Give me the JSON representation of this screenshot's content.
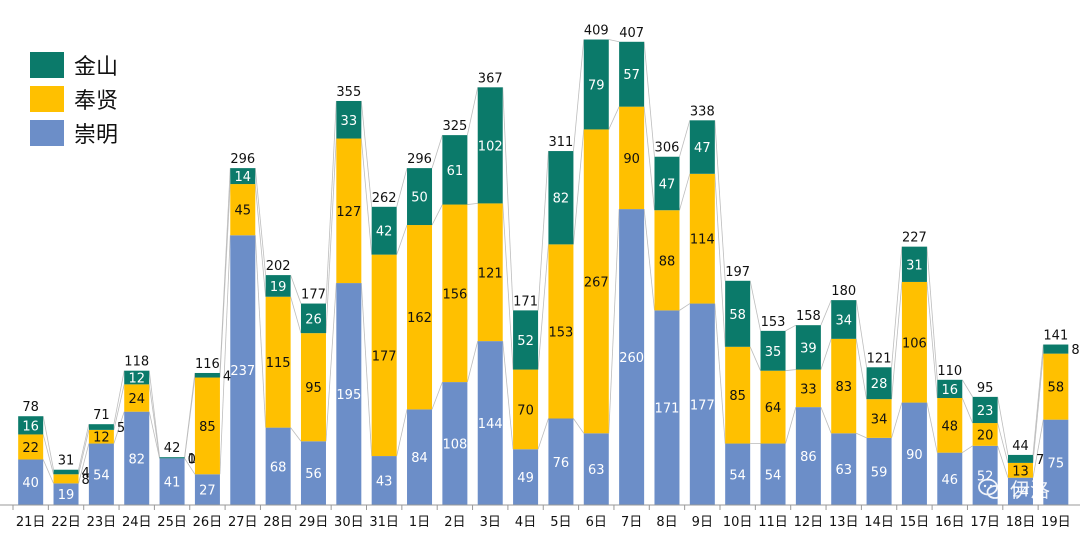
{
  "colors": {
    "jinshan": "#0B7A6A",
    "fengxian": "#FFC000",
    "chongming": "#6C8EC8"
  },
  "legend": [
    {
      "label": "金山",
      "color": "#0B7A6A"
    },
    {
      "label": "奉贤",
      "color": "#FFC000"
    },
    {
      "label": "崇明",
      "color": "#6C8EC8"
    }
  ],
  "watermark": {
    "text": "伊洛",
    "icon": "wechat-icon"
  },
  "chart_data": {
    "type": "bar",
    "stacked": true,
    "ylim": [
      0,
      420
    ],
    "legend_position": "top-left",
    "grid": false,
    "categories": [
      "21日",
      "22日",
      "23日",
      "24日",
      "25日",
      "26日",
      "27日",
      "28日",
      "29日",
      "30日",
      "31日",
      "1日",
      "2日",
      "3日",
      "4日",
      "5日",
      "6日",
      "7日",
      "8日",
      "9日",
      "10日",
      "11日",
      "12日",
      "13日",
      "14日",
      "15日",
      "16日",
      "17日",
      "18日",
      "19日"
    ],
    "series": [
      {
        "name": "崇明",
        "values": [
          40,
          19,
          54,
          82,
          41,
          27,
          237,
          68,
          56,
          195,
          43,
          84,
          108,
          144,
          49,
          76,
          63,
          260,
          171,
          177,
          54,
          54,
          86,
          63,
          59,
          90,
          46,
          52,
          24,
          75
        ]
      },
      {
        "name": "奉贤",
        "values": [
          22,
          8,
          12,
          24,
          0,
          85,
          45,
          115,
          95,
          127,
          177,
          162,
          156,
          121,
          70,
          153,
          267,
          90,
          88,
          114,
          85,
          64,
          33,
          83,
          34,
          106,
          48,
          20,
          13,
          58
        ]
      },
      {
        "name": "金山",
        "values": [
          16,
          4,
          5,
          12,
          1,
          4,
          14,
          19,
          26,
          33,
          42,
          50,
          61,
          102,
          52,
          82,
          79,
          57,
          47,
          47,
          58,
          35,
          39,
          34,
          28,
          31,
          16,
          23,
          7,
          8
        ]
      }
    ],
    "totals": [
      78,
      31,
      71,
      118,
      42,
      116,
      296,
      202,
      177,
      355,
      262,
      296,
      325,
      367,
      171,
      311,
      409,
      407,
      306,
      338,
      197,
      153,
      158,
      180,
      121,
      227,
      110,
      95,
      44,
      141
    ],
    "zero_labels": [
      {
        "index": 4,
        "series": "奉贤",
        "text": "0"
      }
    ]
  }
}
